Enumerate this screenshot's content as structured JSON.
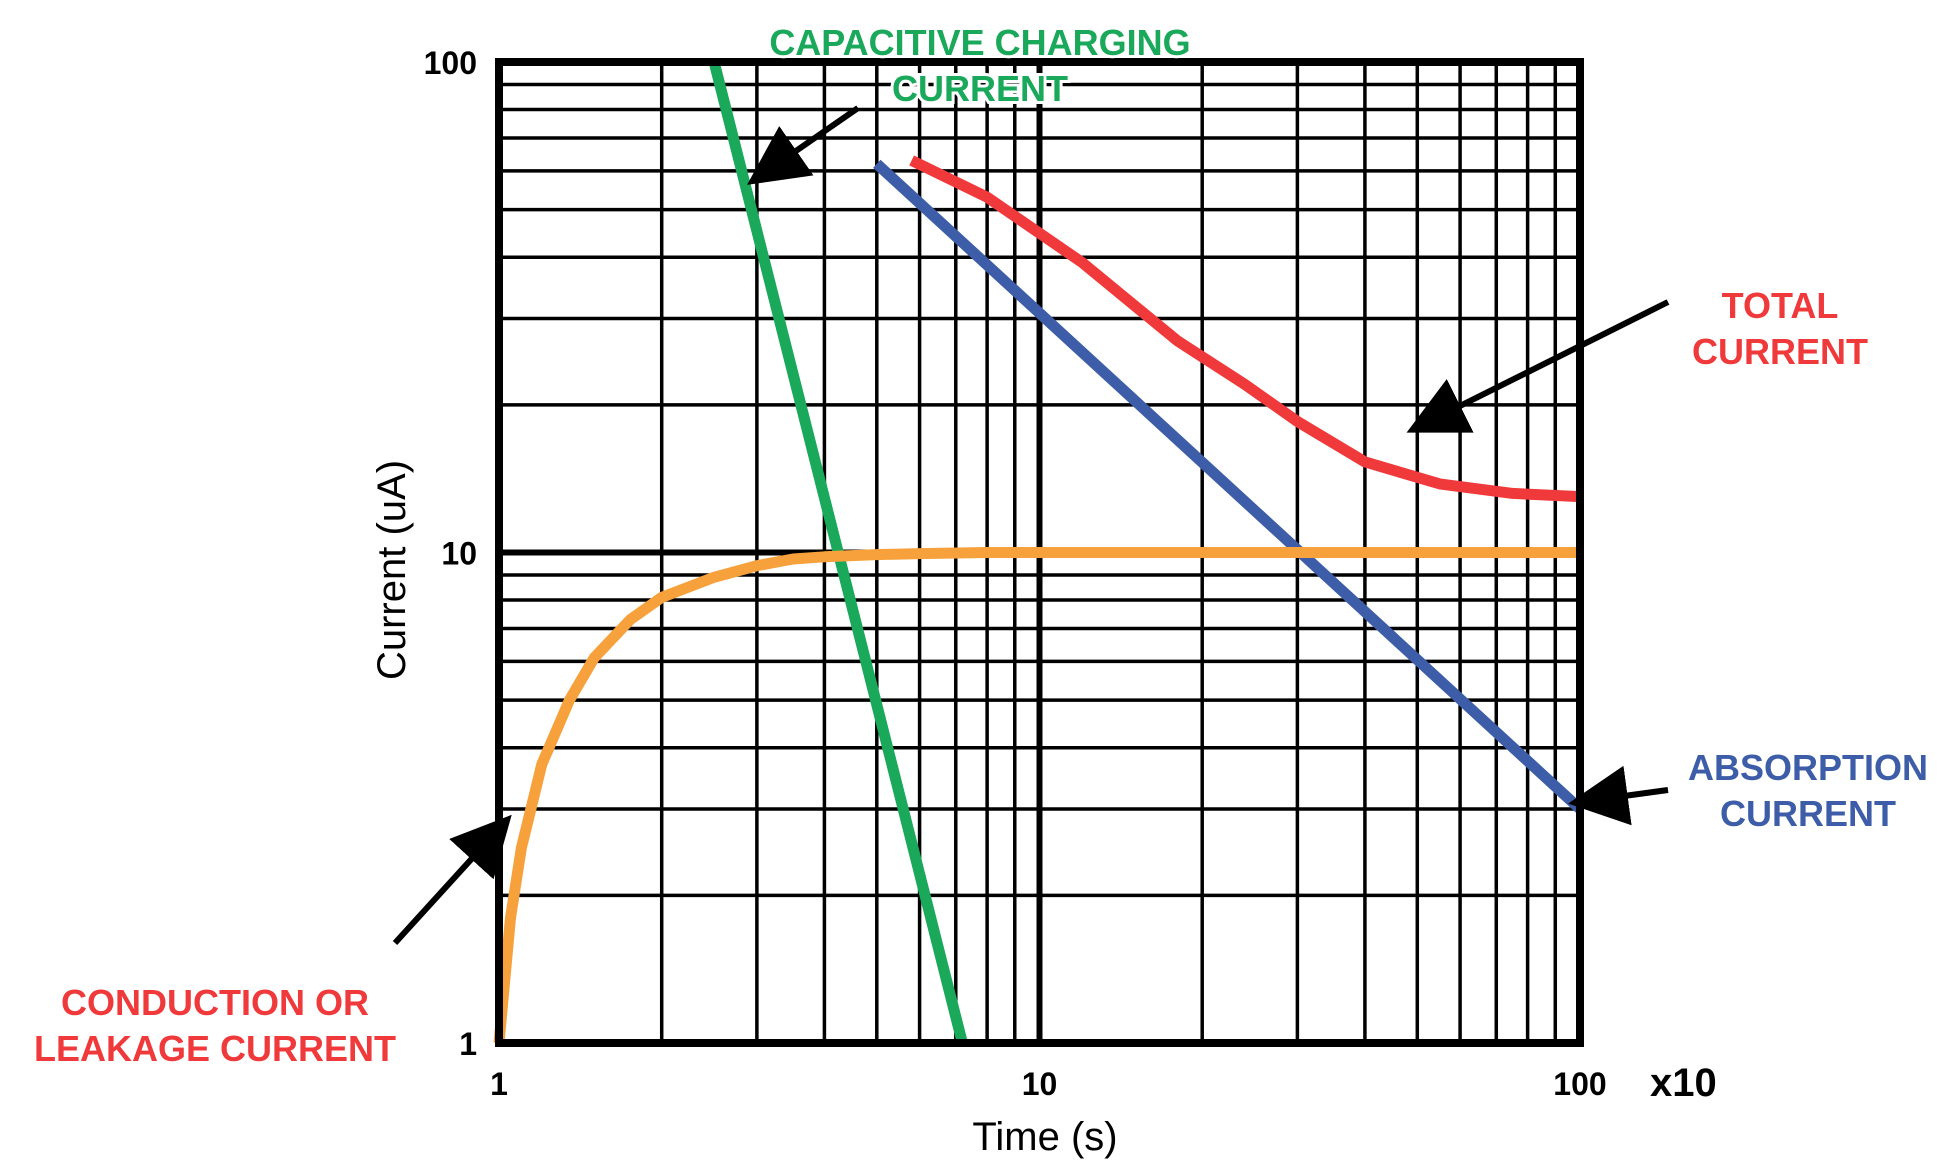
{
  "chart_data": {
    "type": "line",
    "title": "",
    "xlabel": "Time (s)",
    "ylabel": "Current (uA)",
    "x_scale": "log",
    "y_scale": "log",
    "xlim": [
      1,
      100
    ],
    "ylim": [
      1,
      100
    ],
    "x_ticks": [
      "1",
      "10",
      "100"
    ],
    "y_ticks": [
      "1",
      "10",
      "100"
    ],
    "x_multiplier": "x10",
    "grid": true,
    "series": [
      {
        "name": "Capacitive Charging Current",
        "color": "#1aa85a",
        "x": [
          2.5,
          7.2
        ],
        "y": [
          100,
          1
        ]
      },
      {
        "name": "Absorption Current",
        "color": "#3d5da8",
        "x": [
          5,
          100
        ],
        "y": [
          62,
          3
        ]
      },
      {
        "name": "Total Current",
        "color": "#f0393b",
        "x": [
          5.8,
          8,
          12,
          18,
          24,
          30,
          40,
          55,
          75,
          100
        ],
        "y": [
          63,
          53,
          39,
          27,
          22,
          18.5,
          15.3,
          13.8,
          13.2,
          13
        ]
      },
      {
        "name": "Conduction or Leakage Current",
        "color": "#f6a13c",
        "x": [
          1,
          1.05,
          1.1,
          1.2,
          1.35,
          1.5,
          1.75,
          2,
          2.5,
          3,
          3.5,
          4,
          5,
          6,
          8,
          10,
          20,
          50,
          100
        ],
        "y": [
          1,
          1.8,
          2.5,
          3.7,
          5.0,
          6.1,
          7.3,
          8.1,
          8.9,
          9.4,
          9.7,
          9.8,
          9.9,
          9.95,
          10,
          10,
          10,
          10,
          10
        ]
      }
    ],
    "annotations": [
      {
        "lines": [
          "CAPACITIVE CHARGING",
          "CURRENT"
        ],
        "color": "#1aa85a",
        "arrow_to_x": 3.0,
        "arrow_to_y": 58
      },
      {
        "lines": [
          "TOTAL",
          "CURRENT"
        ],
        "color": "#f0393b",
        "arrow_to_x": 50,
        "arrow_to_y": 18
      },
      {
        "lines": [
          "ABSORPTION",
          "CURRENT"
        ],
        "color": "#3d5da8",
        "arrow_to_x": 100,
        "arrow_to_y": 3.1
      },
      {
        "lines": [
          "CONDUCTION OR",
          "LEAKAGE CURRENT"
        ],
        "color": "#f0393b",
        "arrow_to_x": 1.02,
        "arrow_to_y": 2.8
      }
    ]
  }
}
